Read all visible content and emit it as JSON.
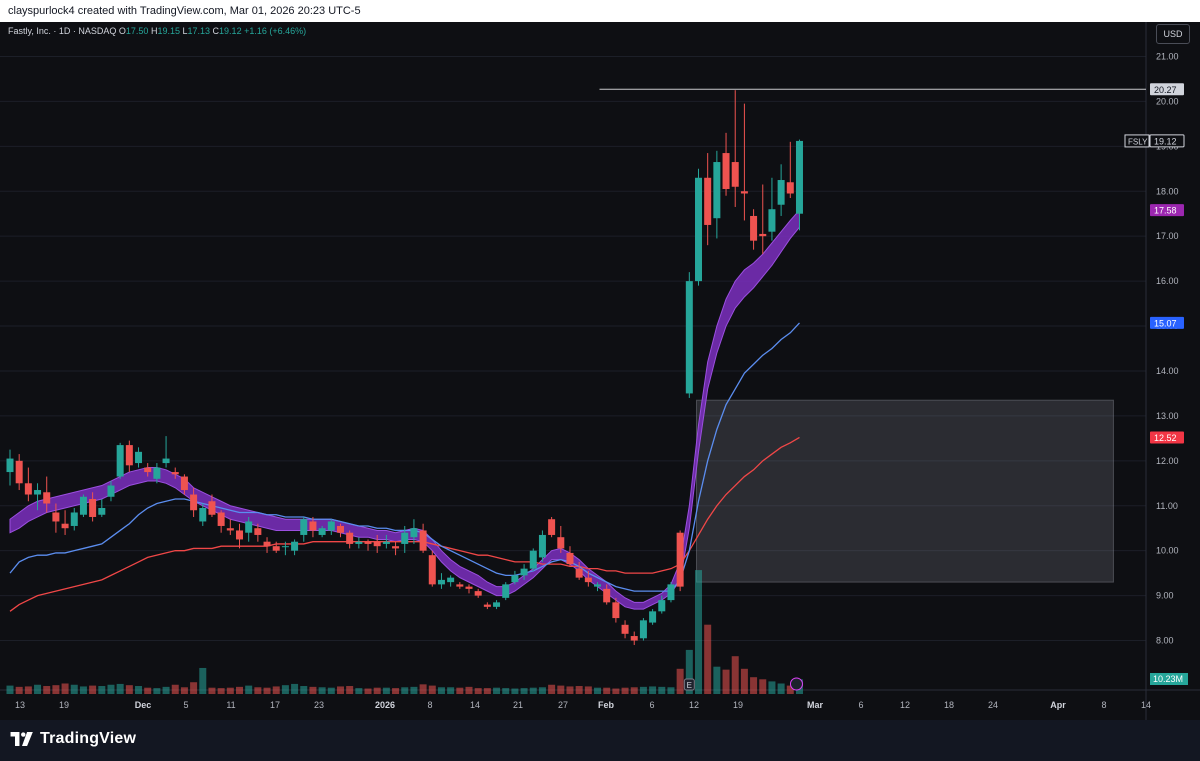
{
  "header": {
    "attribution": "clayspurlock4 created with TradingView.com, Mar 01, 2026 20:23 UTC-5"
  },
  "legend": {
    "symbol_label": "Fastly, Inc. · 1D · NASDAQ",
    "o_label": "O",
    "o_value": "17.50",
    "h_label": "H",
    "h_value": "19.15",
    "l_label": "L",
    "l_value": "17.13",
    "c_label": "C",
    "c_value": "19.12",
    "change": "+1.16 (+6.46%)"
  },
  "currency_button": "USD",
  "footer": {
    "brand": "TradingView"
  },
  "colors": {
    "up": "#26a69a",
    "down": "#ef5350",
    "ema_fast": "#5b8def",
    "ema_slow": "#f04747",
    "ribbon": "#7b2fbf",
    "grid": "#1c1f28"
  },
  "chart_data": {
    "type": "candlestick",
    "symbol": "FSLY",
    "ylim": [
      7.5,
      21.5
    ],
    "y_ticks": [
      8,
      9,
      10,
      11,
      12,
      13,
      14,
      15,
      16,
      17,
      18,
      19,
      20,
      21
    ],
    "y_tick_labels": [
      "8.00",
      "9.00",
      "10.00",
      "11.00",
      "12.00",
      "13.00",
      "14.00",
      "15.00",
      "16.00",
      "17.00",
      "18.00",
      "19.00",
      "20.00",
      "21.00"
    ],
    "x_ticks": [
      "13",
      "19",
      "Dec",
      "5",
      "11",
      "17",
      "23",
      "2026",
      "8",
      "14",
      "21",
      "27",
      "Feb",
      "6",
      "12",
      "19",
      "Mar",
      "6",
      "12",
      "18",
      "24",
      "Apr",
      "8",
      "14"
    ],
    "x_tick_bold": [
      "Dec",
      "2026",
      "Feb",
      "Mar",
      "Apr"
    ],
    "candles": [
      [
        11.75,
        12.25,
        11.45,
        12.05
      ],
      [
        12.0,
        12.15,
        11.35,
        11.5
      ],
      [
        11.5,
        11.85,
        11.1,
        11.25
      ],
      [
        11.25,
        11.5,
        10.9,
        11.35
      ],
      [
        11.3,
        11.65,
        10.85,
        11.05
      ],
      [
        10.85,
        11.05,
        10.4,
        10.65
      ],
      [
        10.6,
        10.9,
        10.35,
        10.5
      ],
      [
        10.55,
        10.95,
        10.45,
        10.85
      ],
      [
        10.8,
        11.25,
        10.75,
        11.2
      ],
      [
        11.15,
        11.3,
        10.65,
        10.75
      ],
      [
        10.8,
        11.15,
        10.75,
        10.95
      ],
      [
        11.2,
        11.55,
        11.1,
        11.45
      ],
      [
        11.65,
        12.4,
        11.6,
        12.35
      ],
      [
        12.35,
        12.45,
        11.75,
        11.9
      ],
      [
        11.95,
        12.3,
        11.85,
        12.2
      ],
      [
        11.85,
        11.95,
        11.65,
        11.75
      ],
      [
        11.6,
        11.95,
        11.5,
        11.85
      ],
      [
        11.95,
        12.55,
        11.85,
        12.05
      ],
      [
        11.75,
        11.85,
        11.6,
        11.7
      ],
      [
        11.65,
        11.7,
        11.25,
        11.35
      ],
      [
        11.25,
        11.4,
        10.75,
        10.9
      ],
      [
        10.65,
        11.05,
        10.55,
        10.95
      ],
      [
        11.1,
        11.25,
        10.75,
        10.8
      ],
      [
        10.85,
        10.9,
        10.4,
        10.55
      ],
      [
        10.5,
        10.7,
        10.35,
        10.45
      ],
      [
        10.45,
        10.6,
        10.05,
        10.25
      ],
      [
        10.4,
        10.75,
        10.2,
        10.65
      ],
      [
        10.5,
        10.6,
        10.2,
        10.35
      ],
      [
        10.2,
        10.3,
        9.95,
        10.1
      ],
      [
        10.1,
        10.2,
        9.95,
        10.0
      ],
      [
        10.1,
        10.2,
        9.9,
        10.1
      ],
      [
        10.0,
        10.25,
        9.9,
        10.2
      ],
      [
        10.35,
        10.75,
        10.2,
        10.7
      ],
      [
        10.65,
        10.75,
        10.3,
        10.45
      ],
      [
        10.35,
        10.55,
        10.3,
        10.5
      ],
      [
        10.45,
        10.7,
        10.35,
        10.65
      ],
      [
        10.55,
        10.6,
        10.3,
        10.4
      ],
      [
        10.4,
        10.45,
        10.05,
        10.15
      ],
      [
        10.15,
        10.3,
        10.05,
        10.2
      ],
      [
        10.2,
        10.25,
        10.0,
        10.15
      ],
      [
        10.2,
        10.35,
        9.95,
        10.1
      ],
      [
        10.15,
        10.35,
        10.05,
        10.2
      ],
      [
        10.1,
        10.2,
        9.9,
        10.05
      ],
      [
        10.15,
        10.55,
        9.95,
        10.4
      ],
      [
        10.3,
        10.7,
        10.15,
        10.5
      ],
      [
        10.45,
        10.6,
        9.95,
        10.0
      ],
      [
        9.9,
        10.0,
        9.2,
        9.25
      ],
      [
        9.25,
        9.5,
        9.15,
        9.35
      ],
      [
        9.3,
        9.45,
        9.2,
        9.4
      ],
      [
        9.25,
        9.3,
        9.15,
        9.2
      ],
      [
        9.2,
        9.25,
        9.05,
        9.15
      ],
      [
        9.1,
        9.15,
        8.95,
        9.0
      ],
      [
        8.8,
        8.85,
        8.7,
        8.75
      ],
      [
        8.75,
        8.9,
        8.7,
        8.85
      ],
      [
        8.95,
        9.3,
        8.9,
        9.25
      ],
      [
        9.3,
        9.55,
        9.25,
        9.45
      ],
      [
        9.45,
        9.7,
        9.35,
        9.6
      ],
      [
        9.6,
        10.05,
        9.55,
        10.0
      ],
      [
        9.85,
        10.45,
        9.75,
        10.35
      ],
      [
        10.7,
        10.75,
        10.3,
        10.35
      ],
      [
        10.3,
        10.55,
        9.95,
        10.05
      ],
      [
        9.95,
        10.1,
        9.65,
        9.7
      ],
      [
        9.6,
        9.75,
        9.35,
        9.4
      ],
      [
        9.4,
        9.55,
        9.2,
        9.3
      ],
      [
        9.2,
        9.3,
        9.1,
        9.25
      ],
      [
        9.15,
        9.25,
        8.8,
        8.85
      ],
      [
        8.85,
        8.95,
        8.4,
        8.5
      ],
      [
        8.35,
        8.45,
        8.05,
        8.15
      ],
      [
        8.1,
        8.2,
        7.9,
        8.0
      ],
      [
        8.05,
        8.5,
        8.0,
        8.45
      ],
      [
        8.4,
        8.7,
        8.35,
        8.65
      ],
      [
        8.65,
        9.0,
        8.6,
        8.9
      ],
      [
        8.9,
        9.3,
        8.85,
        9.25
      ],
      [
        10.4,
        10.45,
        9.1,
        9.2
      ],
      [
        13.5,
        16.2,
        13.4,
        16.0
      ],
      [
        16.0,
        18.5,
        15.9,
        18.3
      ],
      [
        18.3,
        18.85,
        16.8,
        17.25
      ],
      [
        17.4,
        18.9,
        16.95,
        18.65
      ],
      [
        18.85,
        19.3,
        17.9,
        18.05
      ],
      [
        18.65,
        20.25,
        17.65,
        18.1
      ],
      [
        18.0,
        19.95,
        17.35,
        17.95
      ],
      [
        17.45,
        17.6,
        16.7,
        16.9
      ],
      [
        17.05,
        18.15,
        16.6,
        17.0
      ],
      [
        17.1,
        18.3,
        16.9,
        17.6
      ],
      [
        17.7,
        18.6,
        17.45,
        18.25
      ],
      [
        18.2,
        19.1,
        17.85,
        17.95
      ],
      [
        17.5,
        19.15,
        17.13,
        19.12
      ]
    ],
    "volumes": [
      20,
      17,
      18,
      22,
      19,
      21,
      25,
      22,
      18,
      20,
      19,
      22,
      24,
      21,
      19,
      15,
      14,
      17,
      22,
      16,
      28,
      62,
      15,
      14,
      15,
      17,
      20,
      16,
      15,
      18,
      21,
      24,
      19,
      17,
      16,
      15,
      18,
      19,
      14,
      13,
      15,
      15,
      14,
      16,
      17,
      23,
      20,
      16,
      16,
      15,
      17,
      14,
      14,
      15,
      14,
      13,
      14,
      15,
      16,
      22,
      20,
      18,
      19,
      18,
      15,
      15,
      13,
      15,
      16,
      17,
      18,
      17,
      16,
      60,
      105,
      295,
      165,
      65,
      58,
      90,
      60,
      40,
      35,
      30,
      25,
      20,
      35
    ],
    "ema_fast": [
      9.5,
      9.75,
      9.85,
      9.9,
      9.9,
      9.95,
      9.95,
      10.0,
      10.05,
      10.1,
      10.15,
      10.3,
      10.45,
      10.6,
      10.8,
      10.95,
      11.05,
      11.1,
      11.15,
      11.15,
      11.1,
      11.05,
      11.0,
      10.95,
      10.9,
      10.85,
      10.85,
      10.85,
      10.8,
      10.8,
      10.75,
      10.75,
      10.75,
      10.7,
      10.7,
      10.7,
      10.65,
      10.6,
      10.55,
      10.55,
      10.5,
      10.5,
      10.45,
      10.45,
      10.45,
      10.4,
      10.25,
      10.1,
      10.0,
      9.9,
      9.8,
      9.7,
      9.6,
      9.5,
      9.45,
      9.45,
      9.5,
      9.55,
      9.65,
      9.75,
      9.8,
      9.75,
      9.65,
      9.5,
      9.4,
      9.3,
      9.2,
      9.15,
      9.1,
      9.1,
      9.1,
      9.1,
      9.1,
      9.35,
      10.0,
      11.1,
      12.0,
      12.7,
      13.25,
      13.6,
      13.95,
      14.15,
      14.35,
      14.5,
      14.7,
      14.85,
      15.07
    ],
    "ema_slow": [
      8.65,
      8.8,
      8.9,
      9.0,
      9.05,
      9.1,
      9.15,
      9.2,
      9.25,
      9.3,
      9.35,
      9.45,
      9.55,
      9.65,
      9.75,
      9.85,
      9.9,
      9.95,
      10.0,
      10.0,
      10.05,
      10.05,
      10.05,
      10.1,
      10.1,
      10.1,
      10.1,
      10.1,
      10.1,
      10.15,
      10.15,
      10.15,
      10.15,
      10.2,
      10.2,
      10.2,
      10.2,
      10.2,
      10.2,
      10.2,
      10.2,
      10.2,
      10.2,
      10.2,
      10.2,
      10.2,
      10.15,
      10.1,
      10.05,
      10.0,
      9.95,
      9.9,
      9.9,
      9.85,
      9.8,
      9.75,
      9.75,
      9.75,
      9.7,
      9.7,
      9.7,
      9.65,
      9.65,
      9.6,
      9.6,
      9.55,
      9.55,
      9.5,
      9.5,
      9.5,
      9.5,
      9.55,
      9.6,
      9.7,
      10.0,
      10.35,
      10.7,
      11.0,
      11.25,
      11.45,
      11.65,
      11.8,
      12.0,
      12.15,
      12.3,
      12.4,
      12.52
    ],
    "ribbon_upper": [
      10.7,
      10.85,
      11.0,
      11.1,
      11.15,
      11.2,
      11.25,
      11.3,
      11.35,
      11.4,
      11.45,
      11.55,
      11.65,
      11.75,
      11.8,
      11.85,
      11.85,
      11.8,
      11.7,
      11.6,
      11.4,
      11.3,
      11.2,
      11.1,
      11.0,
      10.95,
      10.9,
      10.85,
      10.8,
      10.75,
      10.7,
      10.7,
      10.7,
      10.7,
      10.7,
      10.7,
      10.65,
      10.6,
      10.55,
      10.5,
      10.45,
      10.45,
      10.4,
      10.45,
      10.5,
      10.45,
      10.25,
      10.0,
      9.8,
      9.65,
      9.55,
      9.45,
      9.3,
      9.2,
      9.2,
      9.3,
      9.45,
      9.6,
      9.8,
      10.0,
      10.05,
      9.95,
      9.8,
      9.6,
      9.45,
      9.3,
      9.1,
      8.95,
      8.85,
      8.85,
      8.95,
      9.05,
      9.25,
      9.75,
      11.0,
      12.8,
      14.2,
      15.0,
      15.6,
      16.0,
      16.25,
      16.4,
      16.6,
      16.85,
      17.1,
      17.35,
      17.58
    ],
    "ribbon_lower": [
      10.4,
      10.5,
      10.65,
      10.75,
      10.85,
      10.9,
      10.95,
      11.0,
      11.05,
      11.1,
      11.15,
      11.25,
      11.35,
      11.45,
      11.5,
      11.55,
      11.55,
      11.5,
      11.4,
      11.25,
      11.1,
      11.0,
      10.9,
      10.8,
      10.7,
      10.65,
      10.6,
      10.55,
      10.5,
      10.45,
      10.45,
      10.45,
      10.45,
      10.45,
      10.45,
      10.45,
      10.4,
      10.35,
      10.3,
      10.3,
      10.25,
      10.25,
      10.2,
      10.25,
      10.25,
      10.2,
      10.0,
      9.75,
      9.55,
      9.4,
      9.3,
      9.2,
      9.1,
      9.0,
      9.0,
      9.1,
      9.25,
      9.4,
      9.6,
      9.8,
      9.8,
      9.7,
      9.55,
      9.35,
      9.2,
      9.05,
      8.9,
      8.75,
      8.7,
      8.7,
      8.8,
      8.9,
      9.05,
      9.35,
      10.5,
      12.2,
      13.6,
      14.4,
      15.0,
      15.4,
      15.65,
      15.85,
      16.1,
      16.35,
      16.65,
      16.95,
      17.2
    ],
    "resistance_line": 20.27,
    "zone": {
      "from_candle": 75,
      "to_day_offset": 36,
      "top": 13.35,
      "bottom": 9.3
    },
    "price_labels": [
      {
        "value": 20.27,
        "text": "20.27",
        "bg": "#d1d4dc",
        "fg": "#131722"
      },
      {
        "value": 19.12,
        "text": "19.12",
        "bg": "#0e0f13",
        "fg": "#d1d4dc",
        "tag": "FSLY"
      },
      {
        "value": 17.58,
        "text": "17.58",
        "bg": "#9c27b0",
        "fg": "#ffffff"
      },
      {
        "value": 15.07,
        "text": "15.07",
        "bg": "#2962ff",
        "fg": "#ffffff"
      },
      {
        "value": 12.52,
        "text": "12.52",
        "bg": "#f23645",
        "fg": "#ffffff"
      }
    ],
    "volume_label": "10.23M"
  }
}
